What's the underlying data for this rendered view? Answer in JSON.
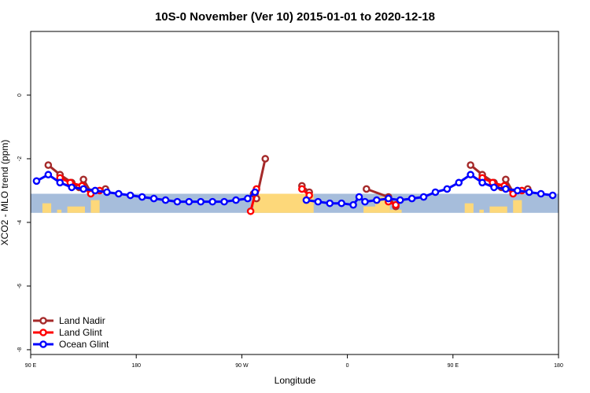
{
  "chart_data": {
    "type": "line",
    "title": "10S-0 November (Ver 10)   2015-01-01 to 2020-12-18",
    "xlabel": "Longitude",
    "ylabel": "XCO2 - MLO trend (ppm)",
    "xlim": [
      45,
      405
    ],
    "ylim": [
      -8,
      2
    ],
    "x_ticks": [
      {
        "value": 45,
        "label": "90 E"
      },
      {
        "value": 117,
        "label": "180"
      },
      {
        "value": 189,
        "label": "90 W"
      },
      {
        "value": 261,
        "label": "0"
      },
      {
        "value": 333,
        "label": "90 E"
      },
      {
        "value": 405,
        "label": "180"
      }
    ],
    "y_ticks": [
      {
        "value": 0,
        "label": "0"
      },
      {
        "value": -2,
        "label": "-2"
      },
      {
        "value": -4,
        "label": "-4"
      },
      {
        "value": -6,
        "label": "-6"
      },
      {
        "value": -8,
        "label": "-8"
      }
    ],
    "background_band": {
      "ymin": -3.7,
      "ymax": -3.1,
      "ocean_color": "#a6bddb",
      "land_color": "#fdd87a"
    },
    "land_masses": [
      {
        "x0": 53,
        "x1": 59,
        "ymax": -3.4
      },
      {
        "x0": 63,
        "x1": 66,
        "ymax": -3.6
      },
      {
        "x0": 70,
        "x1": 82,
        "ymax": -3.5
      },
      {
        "x0": 86,
        "x1": 92,
        "ymax": -3.3
      },
      {
        "x0": 197,
        "x1": 238,
        "ymax": -3.1
      },
      {
        "x0": 272,
        "x1": 280,
        "ymax": -3.5
      },
      {
        "x0": 280,
        "x1": 290,
        "ymax": -3.2
      },
      {
        "x0": 290,
        "x1": 298,
        "ymax": -3.6
      },
      {
        "x0": 341,
        "x1": 347,
        "ymax": -3.4
      },
      {
        "x0": 351,
        "x1": 354,
        "ymax": -3.6
      },
      {
        "x0": 358,
        "x1": 370,
        "ymax": -3.5
      },
      {
        "x0": 374,
        "x1": 380,
        "ymax": -3.3
      }
    ],
    "series": [
      {
        "name": "Land Nadir",
        "color": "#a52a2a",
        "segments": [
          [
            [
              57,
              -2.2
            ],
            [
              65,
              -2.5
            ],
            [
              73,
              -2.75
            ],
            [
              78,
              -2.9
            ],
            [
              81,
              -2.65
            ],
            [
              86,
              -3.05
            ],
            [
              96,
              -2.95
            ]
          ],
          [
            [
              197,
              -3.1
            ],
            [
              199,
              -3.25
            ],
            [
              205,
              -2.0
            ]
          ],
          [
            [
              230,
              -2.85
            ],
            [
              235,
              -3.05
            ]
          ],
          [
            [
              274,
              -2.95
            ],
            [
              289,
              -3.2
            ],
            [
              294,
              -3.5
            ]
          ],
          [
            [
              345,
              -2.2
            ],
            [
              353,
              -2.5
            ],
            [
              361,
              -2.75
            ],
            [
              366,
              -2.9
            ],
            [
              369,
              -2.65
            ],
            [
              374,
              -3.05
            ],
            [
              384,
              -2.95
            ]
          ]
        ]
      },
      {
        "name": "Land Glint",
        "color": "#ff0000",
        "segments": [
          [
            [
              65,
              -2.6
            ],
            [
              72,
              -2.75
            ],
            [
              80,
              -2.85
            ],
            [
              86,
              -3.1
            ],
            [
              92,
              -3.0
            ]
          ],
          [
            [
              195,
              -3.65
            ],
            [
              199,
              -2.95
            ]
          ],
          [
            [
              230,
              -2.95
            ],
            [
              235,
              -3.15
            ]
          ],
          [
            [
              289,
              -3.35
            ],
            [
              294,
              -3.45
            ]
          ],
          [
            [
              353,
              -2.6
            ],
            [
              360,
              -2.75
            ],
            [
              368,
              -2.85
            ],
            [
              374,
              -3.1
            ],
            [
              380,
              -3.0
            ]
          ]
        ]
      },
      {
        "name": "Ocean Glint",
        "color": "#0000ff",
        "segments": [
          [
            [
              49,
              -2.7
            ],
            [
              57,
              -2.5
            ],
            [
              65,
              -2.75
            ],
            [
              73,
              -2.9
            ],
            [
              81,
              -2.95
            ],
            [
              89,
              -3.0
            ],
            [
              97,
              -3.05
            ],
            [
              105,
              -3.1
            ],
            [
              113,
              -3.15
            ],
            [
              121,
              -3.2
            ],
            [
              129,
              -3.25
            ],
            [
              137,
              -3.3
            ],
            [
              145,
              -3.35
            ],
            [
              153,
              -3.35
            ],
            [
              161,
              -3.35
            ],
            [
              169,
              -3.35
            ],
            [
              177,
              -3.35
            ],
            [
              185,
              -3.3
            ],
            [
              193,
              -3.25
            ],
            [
              198,
              -3.05
            ]
          ],
          [
            [
              233,
              -3.3
            ],
            [
              241,
              -3.35
            ],
            [
              249,
              -3.4
            ],
            [
              257,
              -3.4
            ],
            [
              265,
              -3.45
            ],
            [
              269,
              -3.2
            ],
            [
              273,
              -3.35
            ],
            [
              281,
              -3.3
            ],
            [
              289,
              -3.25
            ],
            [
              297,
              -3.3
            ],
            [
              305,
              -3.25
            ],
            [
              313,
              -3.2
            ],
            [
              321,
              -3.05
            ],
            [
              329,
              -2.95
            ],
            [
              337,
              -2.75
            ],
            [
              345,
              -2.5
            ],
            [
              353,
              -2.75
            ],
            [
              361,
              -2.9
            ],
            [
              369,
              -2.95
            ],
            [
              377,
              -3.0
            ],
            [
              385,
              -3.05
            ],
            [
              393,
              -3.1
            ],
            [
              401,
              -3.15
            ]
          ]
        ]
      }
    ]
  }
}
